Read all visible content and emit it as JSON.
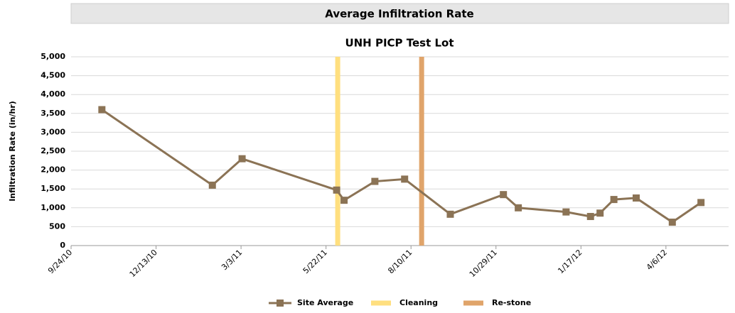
{
  "chart_data": {
    "type": "line",
    "title": "Average Infiltration Rate",
    "subtitle": "UNH PICP Test Lot",
    "y_label": "Infiltration Rate (in/hr)",
    "x": [
      "2010-10-23",
      "2011-02-04",
      "2011-03-04",
      "2011-06-01",
      "2011-06-08",
      "2011-07-07",
      "2011-08-04",
      "2011-09-16",
      "2011-11-05",
      "2011-11-19",
      "2012-01-03",
      "2012-01-26",
      "2012-02-04",
      "2012-02-17",
      "2012-03-09",
      "2012-04-12",
      "2012-05-09"
    ],
    "series": [
      {
        "name": "Site Average",
        "color": "#8b7355",
        "values": [
          3600,
          1600,
          2300,
          1470,
          1200,
          1700,
          1760,
          830,
          1350,
          1000,
          890,
          770,
          860,
          1220,
          1260,
          620,
          1140
        ]
      }
    ],
    "events": [
      {
        "name": "Cleaning",
        "color": "#ffdf7f",
        "x": "2011-06-02"
      },
      {
        "name": "Re-stone",
        "color": "#e0a46a",
        "x": "2011-08-20"
      }
    ],
    "xlim": [
      "2010-09-24",
      "2012-06-04"
    ],
    "xticks": [
      {
        "value": "2010-09-24",
        "label": "9/24/10"
      },
      {
        "value": "2010-12-13",
        "label": "12/13/10"
      },
      {
        "value": "2011-03-03",
        "label": "3/3/11"
      },
      {
        "value": "2011-05-22",
        "label": "5/22/11"
      },
      {
        "value": "2011-08-10",
        "label": "8/10/11"
      },
      {
        "value": "2011-10-29",
        "label": "10/29/11"
      },
      {
        "value": "2012-01-17",
        "label": "1/17/12"
      },
      {
        "value": "2012-04-06",
        "label": "4/6/12"
      }
    ],
    "ylim": [
      0,
      5000
    ],
    "yticks": [
      0,
      {
        "value": 500,
        "label": "500"
      },
      {
        "value": 1000,
        "label": "1,000"
      },
      {
        "value": 1500,
        "label": "1,500"
      },
      {
        "value": 2000,
        "label": "2,000"
      },
      {
        "value": 2500,
        "label": "2,500"
      },
      {
        "value": 3000,
        "label": "3,000"
      },
      {
        "value": 3500,
        "label": "3,500"
      },
      {
        "value": 4000,
        "label": "4,000"
      },
      {
        "value": 4500,
        "label": "4,500"
      },
      {
        "value": 5000,
        "label": "5,000"
      }
    ],
    "grid": true,
    "legend": "bottom"
  }
}
